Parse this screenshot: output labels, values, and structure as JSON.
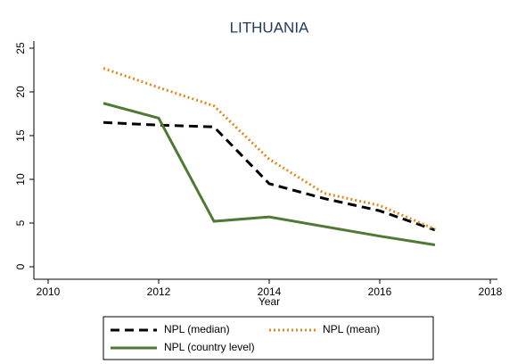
{
  "chart_data": {
    "type": "line",
    "title": "LITHUANIA",
    "x_label": "Year",
    "x": [
      2011,
      2012,
      2013,
      2014,
      2015,
      2016,
      2017
    ],
    "series": [
      {
        "name": "NPL (median)",
        "color": "#000000",
        "dash": "dashed",
        "values": [
          16.5,
          16.2,
          16.0,
          9.5,
          7.8,
          6.4,
          4.2
        ]
      },
      {
        "name": "NPL (mean)",
        "color": "#e08a1e",
        "dash": "dotted",
        "values": [
          22.7,
          20.5,
          18.4,
          12.3,
          8.4,
          7.0,
          4.3
        ]
      },
      {
        "name": "NPL (country level)",
        "color": "#4e7a35",
        "dash": "solid",
        "values": [
          18.7,
          17.0,
          5.2,
          5.7,
          4.6,
          3.5,
          2.5
        ]
      }
    ],
    "xlim": [
      2010,
      2018
    ],
    "xticks": [
      2010,
      2012,
      2014,
      2016,
      2018
    ],
    "ylim": [
      0,
      25
    ],
    "yticks": [
      0,
      5,
      10,
      15,
      20,
      25
    ],
    "grid": false
  }
}
